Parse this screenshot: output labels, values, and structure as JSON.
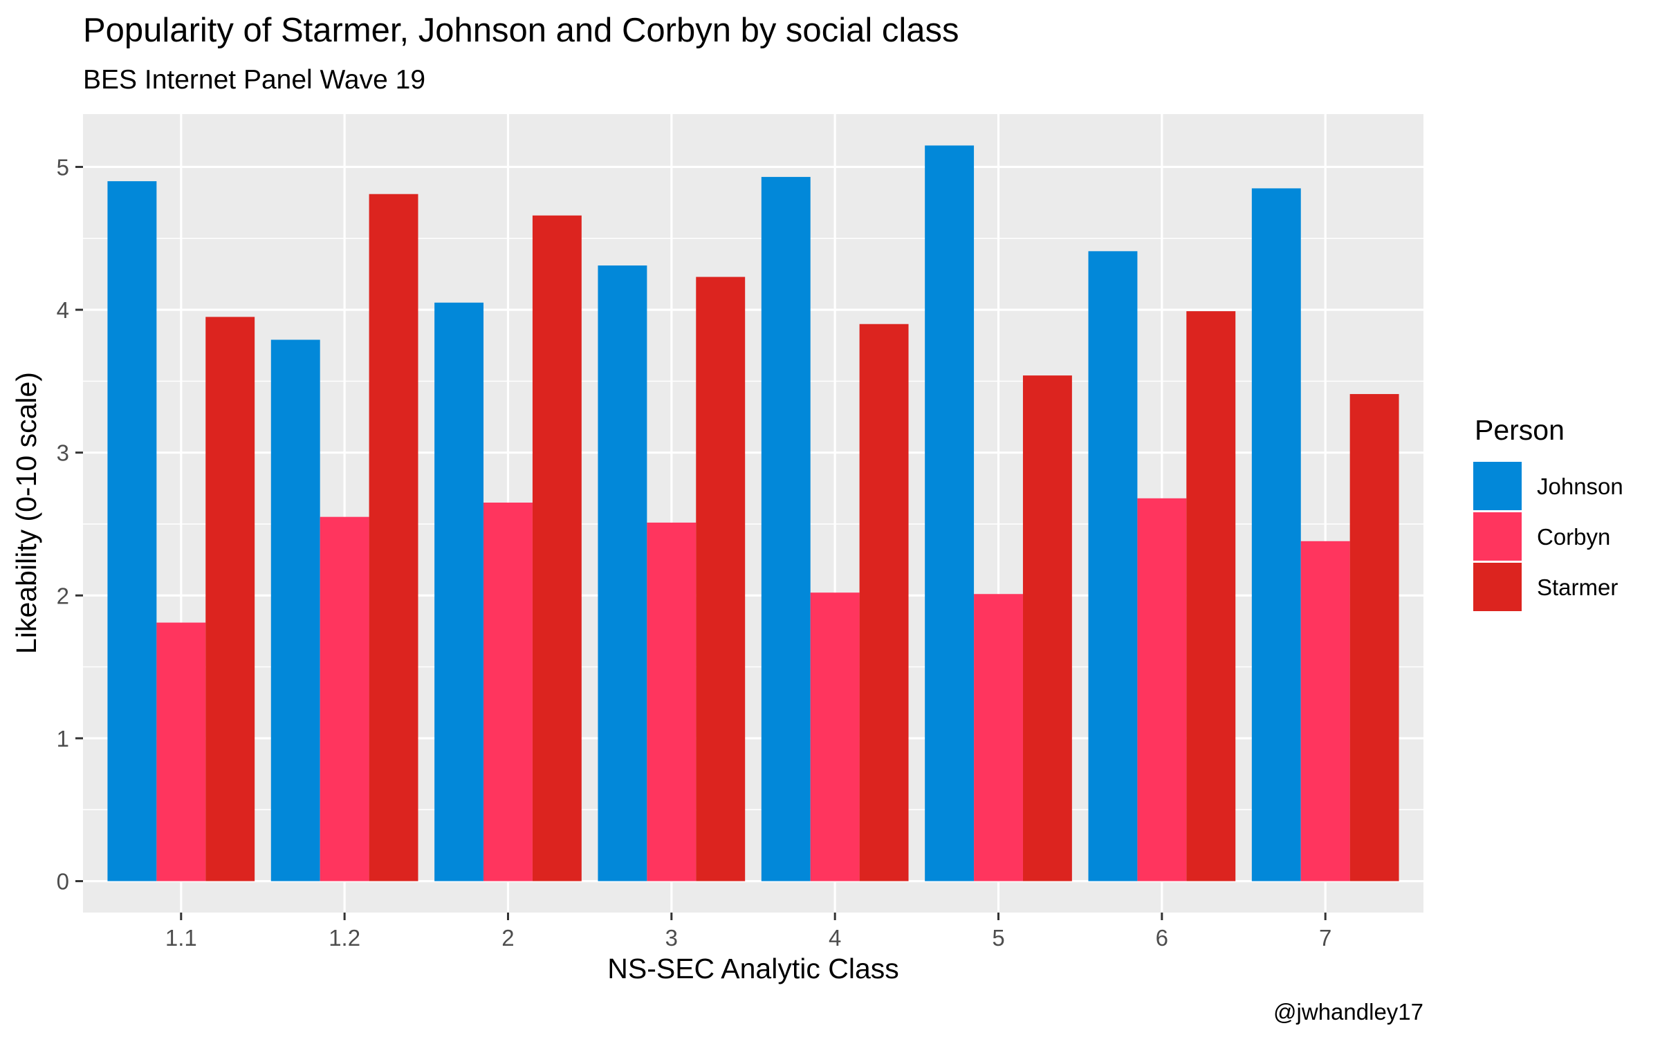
{
  "chart_data": {
    "type": "bar",
    "title": "Popularity of Starmer, Johnson and Corbyn by social class",
    "subtitle": "BES Internet Panel Wave 19",
    "xlabel": "NS-SEC Analytic Class",
    "ylabel": "Likeability (0-10 scale)",
    "caption": "@jwhandley17",
    "categories": [
      "1.1",
      "1.2",
      "2",
      "3",
      "4",
      "5",
      "6",
      "7"
    ],
    "yticks": [
      "0",
      "1",
      "2",
      "3",
      "4",
      "5"
    ],
    "ylim": [
      -0.22,
      5.37
    ],
    "grid": true,
    "legend": {
      "title": "Person",
      "position": "right"
    },
    "series": [
      {
        "name": "Johnson",
        "color": "#0288D9",
        "values": [
          4.9,
          3.79,
          4.05,
          4.31,
          4.93,
          5.15,
          4.41,
          4.85
        ]
      },
      {
        "name": "Corbyn",
        "color": "#FF355E",
        "values": [
          1.81,
          2.55,
          2.65,
          2.51,
          2.02,
          2.01,
          2.68,
          2.38
        ]
      },
      {
        "name": "Starmer",
        "color": "#DC241F",
        "values": [
          3.95,
          4.81,
          4.66,
          4.23,
          3.9,
          3.54,
          3.99,
          3.41
        ]
      }
    ]
  }
}
